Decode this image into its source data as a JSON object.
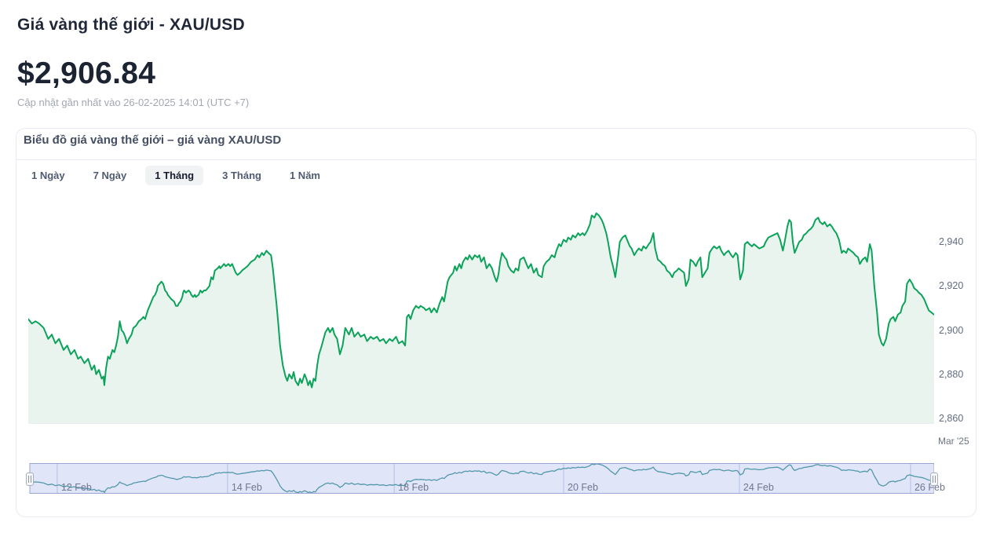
{
  "header": {
    "title": "Giá vàng thế giới - XAU/USD",
    "price": "$2,906.84",
    "updated": "Cập nhật gần nhất vào 26-02-2025 14:01 (UTC +7)"
  },
  "card": {
    "title": "Biểu đồ giá vàng thế giới – giá vàng XAU/USD",
    "tabs": [
      {
        "label": "1 Ngày",
        "active": false
      },
      {
        "label": "7 Ngày",
        "active": false
      },
      {
        "label": "1 Tháng",
        "active": true
      },
      {
        "label": "3 Tháng",
        "active": false
      },
      {
        "label": "1 Năm",
        "active": false
      }
    ]
  },
  "colors": {
    "line": "#0ba35a",
    "area_fill": "#e9f4ee",
    "nav_line": "#4a9d9b",
    "nav_mask": "#7388dd",
    "nav_grid": "#c6cdeb",
    "text_dark": "#1f2738",
    "text_gray": "#a2a7b2"
  },
  "chart_data": {
    "type": "area",
    "title": "Biểu đồ giá vàng thế giới – giá vàng XAU/USD",
    "series_name": "XAU/USD",
    "current_value": 2906.84,
    "y_domain": [
      2857.5,
      2960
    ],
    "yticks": [
      2940,
      2920,
      2900,
      2880,
      2860
    ],
    "ytick_labels": [
      "2,940",
      "2,920",
      "2,900",
      "2,880",
      "2,860"
    ],
    "x_axis_label": "Mar '25",
    "grid": false,
    "legend": "none",
    "points": [
      [
        0.0,
        2905
      ],
      [
        0.004,
        2903
      ],
      [
        0.008,
        2904
      ],
      [
        0.012,
        2903
      ],
      [
        0.017,
        2901
      ],
      [
        0.022,
        2896
      ],
      [
        0.026,
        2898
      ],
      [
        0.03,
        2894
      ],
      [
        0.034,
        2896
      ],
      [
        0.039,
        2891
      ],
      [
        0.043,
        2893
      ],
      [
        0.047,
        2889
      ],
      [
        0.051,
        2891
      ],
      [
        0.055,
        2887
      ],
      [
        0.058,
        2888
      ],
      [
        0.062,
        2885
      ],
      [
        0.066,
        2887
      ],
      [
        0.07,
        2882
      ],
      [
        0.073,
        2884
      ],
      [
        0.075,
        2880
      ],
      [
        0.078,
        2882
      ],
      [
        0.081,
        2878
      ],
      [
        0.083,
        2879
      ],
      [
        0.084,
        2875
      ],
      [
        0.086,
        2883
      ],
      [
        0.088,
        2888
      ],
      [
        0.09,
        2887
      ],
      [
        0.093,
        2891
      ],
      [
        0.095,
        2890
      ],
      [
        0.097,
        2893
      ],
      [
        0.099,
        2897
      ],
      [
        0.101,
        2904
      ],
      [
        0.103,
        2900
      ],
      [
        0.105,
        2899
      ],
      [
        0.107,
        2897
      ],
      [
        0.109,
        2894
      ],
      [
        0.111,
        2896
      ],
      [
        0.114,
        2898
      ],
      [
        0.116,
        2901
      ],
      [
        0.119,
        2902
      ],
      [
        0.122,
        2904
      ],
      [
        0.125,
        2905
      ],
      [
        0.127,
        2906
      ],
      [
        0.129,
        2905
      ],
      [
        0.132,
        2909
      ],
      [
        0.134,
        2911
      ],
      [
        0.136,
        2913
      ],
      [
        0.138,
        2915
      ],
      [
        0.14,
        2916
      ],
      [
        0.142,
        2918
      ],
      [
        0.143,
        2920
      ],
      [
        0.145,
        2921
      ],
      [
        0.147,
        2922
      ],
      [
        0.149,
        2921
      ],
      [
        0.151,
        2918
      ],
      [
        0.153,
        2917
      ],
      [
        0.154,
        2916
      ],
      [
        0.156,
        2915
      ],
      [
        0.158,
        2914
      ],
      [
        0.161,
        2913
      ],
      [
        0.163,
        2911
      ],
      [
        0.165,
        2911
      ],
      [
        0.166,
        2912
      ],
      [
        0.168,
        2913
      ],
      [
        0.17,
        2915
      ],
      [
        0.171,
        2917
      ],
      [
        0.172,
        2918
      ],
      [
        0.174,
        2917
      ],
      [
        0.177,
        2918
      ],
      [
        0.179,
        2917
      ],
      [
        0.18,
        2916
      ],
      [
        0.182,
        2915
      ],
      [
        0.184,
        2916
      ],
      [
        0.185,
        2915
      ],
      [
        0.188,
        2916
      ],
      [
        0.19,
        2918
      ],
      [
        0.192,
        2917
      ],
      [
        0.194,
        2918
      ],
      [
        0.196,
        2918
      ],
      [
        0.198,
        2919
      ],
      [
        0.2,
        2920
      ],
      [
        0.202,
        2924
      ],
      [
        0.204,
        2923
      ],
      [
        0.206,
        2927
      ],
      [
        0.209,
        2928
      ],
      [
        0.211,
        2929
      ],
      [
        0.212,
        2928
      ],
      [
        0.214,
        2929
      ],
      [
        0.216,
        2930
      ],
      [
        0.218,
        2929
      ],
      [
        0.221,
        2930
      ],
      [
        0.223,
        2929
      ],
      [
        0.225,
        2930
      ],
      [
        0.229,
        2926
      ],
      [
        0.231,
        2925
      ],
      [
        0.234,
        2926
      ],
      [
        0.236,
        2927
      ],
      [
        0.242,
        2929
      ],
      [
        0.246,
        2931
      ],
      [
        0.25,
        2932
      ],
      [
        0.253,
        2934
      ],
      [
        0.255,
        2933
      ],
      [
        0.258,
        2935
      ],
      [
        0.26,
        2934
      ],
      [
        0.263,
        2936
      ],
      [
        0.265,
        2935
      ],
      [
        0.268,
        2934
      ],
      [
        0.27,
        2928
      ],
      [
        0.272,
        2920
      ],
      [
        0.274,
        2912
      ],
      [
        0.276,
        2903
      ],
      [
        0.278,
        2893
      ],
      [
        0.281,
        2884
      ],
      [
        0.284,
        2879
      ],
      [
        0.286,
        2877
      ],
      [
        0.288,
        2880
      ],
      [
        0.291,
        2878
      ],
      [
        0.293,
        2881
      ],
      [
        0.295,
        2877
      ],
      [
        0.298,
        2875
      ],
      [
        0.3,
        2878
      ],
      [
        0.302,
        2876
      ],
      [
        0.305,
        2880
      ],
      [
        0.307,
        2878
      ],
      [
        0.309,
        2875
      ],
      [
        0.311,
        2877
      ],
      [
        0.313,
        2874
      ],
      [
        0.315,
        2878
      ],
      [
        0.317,
        2877
      ],
      [
        0.319,
        2884
      ],
      [
        0.321,
        2889
      ],
      [
        0.324,
        2893
      ],
      [
        0.326,
        2896
      ],
      [
        0.328,
        2899
      ],
      [
        0.331,
        2901
      ],
      [
        0.333,
        2899
      ],
      [
        0.336,
        2901
      ],
      [
        0.338,
        2898
      ],
      [
        0.341,
        2896
      ],
      [
        0.344,
        2889
      ],
      [
        0.347,
        2893
      ],
      [
        0.35,
        2901
      ],
      [
        0.354,
        2898
      ],
      [
        0.357,
        2901
      ],
      [
        0.36,
        2897
      ],
      [
        0.364,
        2899
      ],
      [
        0.367,
        2897
      ],
      [
        0.371,
        2898
      ],
      [
        0.374,
        2895
      ],
      [
        0.378,
        2897
      ],
      [
        0.381,
        2896
      ],
      [
        0.385,
        2897
      ],
      [
        0.388,
        2895
      ],
      [
        0.392,
        2896
      ],
      [
        0.395,
        2894
      ],
      [
        0.399,
        2896
      ],
      [
        0.402,
        2895
      ],
      [
        0.406,
        2897
      ],
      [
        0.409,
        2894
      ],
      [
        0.413,
        2895
      ],
      [
        0.416,
        2893
      ],
      [
        0.418,
        2906
      ],
      [
        0.42,
        2907
      ],
      [
        0.422,
        2905
      ],
      [
        0.425,
        2909
      ],
      [
        0.428,
        2911
      ],
      [
        0.431,
        2910
      ],
      [
        0.433,
        2911
      ],
      [
        0.437,
        2910
      ],
      [
        0.439,
        2909
      ],
      [
        0.443,
        2910
      ],
      [
        0.445,
        2908
      ],
      [
        0.448,
        2910
      ],
      [
        0.451,
        2908
      ],
      [
        0.454,
        2912
      ],
      [
        0.457,
        2915
      ],
      [
        0.459,
        2913
      ],
      [
        0.463,
        2922
      ],
      [
        0.465,
        2924
      ],
      [
        0.469,
        2926
      ],
      [
        0.471,
        2929
      ],
      [
        0.473,
        2927
      ],
      [
        0.476,
        2930
      ],
      [
        0.478,
        2928
      ],
      [
        0.48,
        2931
      ],
      [
        0.483,
        2933
      ],
      [
        0.485,
        2932
      ],
      [
        0.487,
        2934
      ],
      [
        0.49,
        2932
      ],
      [
        0.493,
        2934
      ],
      [
        0.496,
        2933
      ],
      [
        0.498,
        2934
      ],
      [
        0.5,
        2931
      ],
      [
        0.503,
        2933
      ],
      [
        0.506,
        2928
      ],
      [
        0.509,
        2930
      ],
      [
        0.512,
        2928
      ],
      [
        0.515,
        2924
      ],
      [
        0.517,
        2922
      ],
      [
        0.519,
        2925
      ],
      [
        0.521,
        2931
      ],
      [
        0.523,
        2935
      ],
      [
        0.526,
        2933
      ],
      [
        0.528,
        2932
      ],
      [
        0.53,
        2929
      ],
      [
        0.533,
        2927
      ],
      [
        0.536,
        2926
      ],
      [
        0.538,
        2928
      ],
      [
        0.541,
        2927
      ],
      [
        0.543,
        2932
      ],
      [
        0.547,
        2933
      ],
      [
        0.549,
        2931
      ],
      [
        0.552,
        2928
      ],
      [
        0.555,
        2930
      ],
      [
        0.558,
        2926
      ],
      [
        0.561,
        2928
      ],
      [
        0.563,
        2925
      ],
      [
        0.567,
        2924
      ],
      [
        0.569,
        2929
      ],
      [
        0.572,
        2931
      ],
      [
        0.575,
        2932
      ],
      [
        0.578,
        2934
      ],
      [
        0.581,
        2933
      ],
      [
        0.583,
        2936
      ],
      [
        0.586,
        2939
      ],
      [
        0.588,
        2938
      ],
      [
        0.591,
        2941
      ],
      [
        0.594,
        2940
      ],
      [
        0.596,
        2942
      ],
      [
        0.599,
        2941
      ],
      [
        0.601,
        2943
      ],
      [
        0.604,
        2942
      ],
      [
        0.607,
        2944
      ],
      [
        0.609,
        2943
      ],
      [
        0.612,
        2944
      ],
      [
        0.614,
        2943
      ],
      [
        0.617,
        2945
      ],
      [
        0.62,
        2948
      ],
      [
        0.622,
        2952
      ],
      [
        0.625,
        2951
      ],
      [
        0.627,
        2953
      ],
      [
        0.63,
        2952
      ],
      [
        0.633,
        2950
      ],
      [
        0.635,
        2948
      ],
      [
        0.638,
        2944
      ],
      [
        0.64,
        2940
      ],
      [
        0.643,
        2933
      ],
      [
        0.646,
        2928
      ],
      [
        0.648,
        2924
      ],
      [
        0.651,
        2933
      ],
      [
        0.653,
        2940
      ],
      [
        0.656,
        2942
      ],
      [
        0.659,
        2943
      ],
      [
        0.661,
        2941
      ],
      [
        0.664,
        2938
      ],
      [
        0.666,
        2937
      ],
      [
        0.669,
        2934
      ],
      [
        0.672,
        2936
      ],
      [
        0.674,
        2937
      ],
      [
        0.677,
        2936
      ],
      [
        0.679,
        2938
      ],
      [
        0.682,
        2937
      ],
      [
        0.685,
        2939
      ],
      [
        0.687,
        2940
      ],
      [
        0.69,
        2944
      ],
      [
        0.692,
        2937
      ],
      [
        0.695,
        2932
      ],
      [
        0.698,
        2931
      ],
      [
        0.7,
        2930
      ],
      [
        0.703,
        2929
      ],
      [
        0.705,
        2927
      ],
      [
        0.708,
        2926
      ],
      [
        0.711,
        2924
      ],
      [
        0.713,
        2926
      ],
      [
        0.716,
        2927
      ],
      [
        0.718,
        2928
      ],
      [
        0.721,
        2927
      ],
      [
        0.724,
        2926
      ],
      [
        0.726,
        2920
      ],
      [
        0.729,
        2923
      ],
      [
        0.731,
        2932
      ],
      [
        0.734,
        2931
      ],
      [
        0.737,
        2929
      ],
      [
        0.739,
        2931
      ],
      [
        0.742,
        2933
      ],
      [
        0.744,
        2924
      ],
      [
        0.747,
        2926
      ],
      [
        0.75,
        2928
      ],
      [
        0.752,
        2935
      ],
      [
        0.755,
        2937
      ],
      [
        0.757,
        2938
      ],
      [
        0.76,
        2937
      ],
      [
        0.763,
        2938
      ],
      [
        0.765,
        2936
      ],
      [
        0.768,
        2934
      ],
      [
        0.77,
        2935
      ],
      [
        0.773,
        2936
      ],
      [
        0.776,
        2934
      ],
      [
        0.778,
        2933
      ],
      [
        0.781,
        2935
      ],
      [
        0.783,
        2934
      ],
      [
        0.786,
        2923
      ],
      [
        0.789,
        2927
      ],
      [
        0.791,
        2939
      ],
      [
        0.794,
        2940
      ],
      [
        0.796,
        2939
      ],
      [
        0.799,
        2938
      ],
      [
        0.801,
        2939
      ],
      [
        0.804,
        2938
      ],
      [
        0.807,
        2937
      ],
      [
        0.812,
        2938
      ],
      [
        0.814,
        2940
      ],
      [
        0.817,
        2942
      ],
      [
        0.822,
        2943
      ],
      [
        0.827,
        2944
      ],
      [
        0.83,
        2941
      ],
      [
        0.833,
        2936
      ],
      [
        0.835,
        2940
      ],
      [
        0.838,
        2947
      ],
      [
        0.84,
        2950
      ],
      [
        0.842,
        2949
      ],
      [
        0.844,
        2940
      ],
      [
        0.846,
        2935
      ],
      [
        0.848,
        2937
      ],
      [
        0.851,
        2940
      ],
      [
        0.854,
        2941
      ],
      [
        0.856,
        2943
      ],
      [
        0.859,
        2944
      ],
      [
        0.861,
        2945
      ],
      [
        0.864,
        2946
      ],
      [
        0.866,
        2947
      ],
      [
        0.869,
        2950
      ],
      [
        0.872,
        2951
      ],
      [
        0.874,
        2949
      ],
      [
        0.877,
        2948
      ],
      [
        0.879,
        2949
      ],
      [
        0.882,
        2947
      ],
      [
        0.885,
        2948
      ],
      [
        0.887,
        2947
      ],
      [
        0.89,
        2945
      ],
      [
        0.892,
        2944
      ],
      [
        0.895,
        2941
      ],
      [
        0.898,
        2935
      ],
      [
        0.9,
        2936
      ],
      [
        0.903,
        2935
      ],
      [
        0.905,
        2937
      ],
      [
        0.908,
        2936
      ],
      [
        0.911,
        2935
      ],
      [
        0.913,
        2934
      ],
      [
        0.916,
        2933
      ],
      [
        0.918,
        2930
      ],
      [
        0.921,
        2932
      ],
      [
        0.924,
        2933
      ],
      [
        0.926,
        2931
      ],
      [
        0.929,
        2939
      ],
      [
        0.931,
        2936
      ],
      [
        0.934,
        2920
      ],
      [
        0.937,
        2908
      ],
      [
        0.939,
        2898
      ],
      [
        0.942,
        2894
      ],
      [
        0.944,
        2893
      ],
      [
        0.947,
        2896
      ],
      [
        0.95,
        2903
      ],
      [
        0.952,
        2905
      ],
      [
        0.955,
        2906
      ],
      [
        0.957,
        2904
      ],
      [
        0.96,
        2907
      ],
      [
        0.963,
        2908
      ],
      [
        0.965,
        2911
      ],
      [
        0.968,
        2913
      ],
      [
        0.97,
        2921
      ],
      [
        0.973,
        2923
      ],
      [
        0.976,
        2921
      ],
      [
        0.978,
        2919
      ],
      [
        0.981,
        2918
      ],
      [
        0.983,
        2917
      ],
      [
        0.986,
        2916
      ],
      [
        0.989,
        2914
      ],
      [
        0.991,
        2912
      ],
      [
        0.994,
        2909
      ],
      [
        0.997,
        2908
      ],
      [
        1.0,
        2907
      ]
    ],
    "navigator": {
      "y_domain": [
        2872,
        2955
      ],
      "labels": [
        {
          "text": "12 Feb",
          "pos": 0.032
        },
        {
          "text": "14 Feb",
          "pos": 0.22
        },
        {
          "text": "18 Feb",
          "pos": 0.404
        },
        {
          "text": "20 Feb",
          "pos": 0.591
        },
        {
          "text": "24 Feb",
          "pos": 0.785
        },
        {
          "text": "26 Feb",
          "pos": 0.974
        }
      ]
    }
  }
}
